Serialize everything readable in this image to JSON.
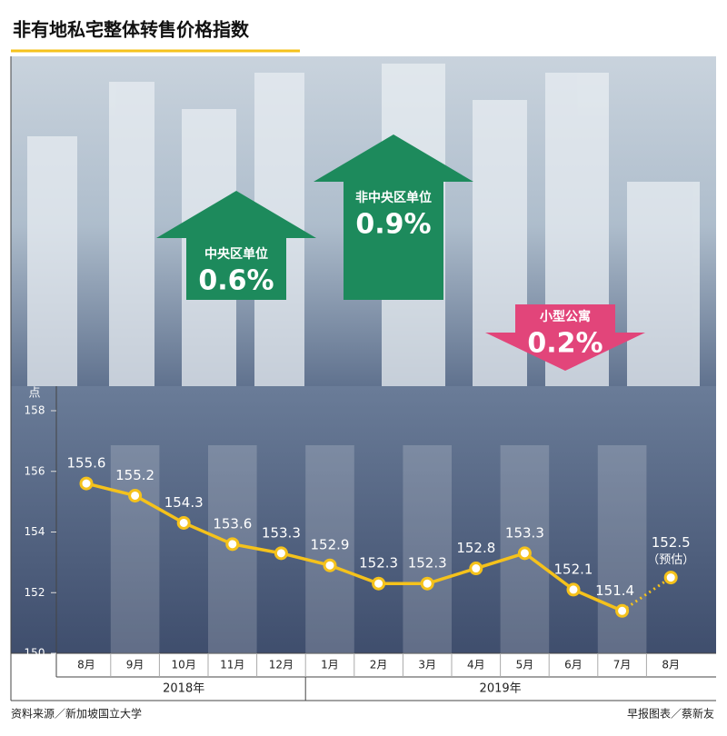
{
  "chart_data": {
    "type": "line",
    "title": "非有地私宅整体转售价格指数",
    "y_unit": "点",
    "categories": [
      "8月",
      "9月",
      "10月",
      "11月",
      "12月",
      "1月",
      "2月",
      "3月",
      "4月",
      "5月",
      "6月",
      "7月",
      "8月"
    ],
    "groups": [
      {
        "label": "2018年",
        "count": 5
      },
      {
        "label": "2019年",
        "count": 8
      }
    ],
    "series": [
      {
        "name": "非有地私宅整体转售价格指数",
        "color": "#f5c21b",
        "values": [
          155.6,
          155.2,
          154.3,
          153.6,
          153.3,
          152.9,
          152.3,
          152.3,
          152.8,
          153.3,
          152.1,
          151.4,
          152.5
        ]
      }
    ],
    "estimate_note": "（预估）",
    "ylim": [
      150,
      158
    ],
    "yticks": [
      150,
      152,
      154,
      156,
      158
    ],
    "arrows": [
      {
        "label": "中央区单位",
        "change": "0.6%",
        "direction": "up",
        "color": "#1d8a5c"
      },
      {
        "label": "非中央区单位",
        "change": "0.9%",
        "direction": "up",
        "color": "#1d8a5c"
      },
      {
        "label": "小型公寓",
        "change": "0.2%",
        "direction": "down",
        "color": "#e2457a"
      }
    ],
    "source": "资料来源／新加坡国立大学",
    "credit": "早报图表／蔡新友"
  }
}
